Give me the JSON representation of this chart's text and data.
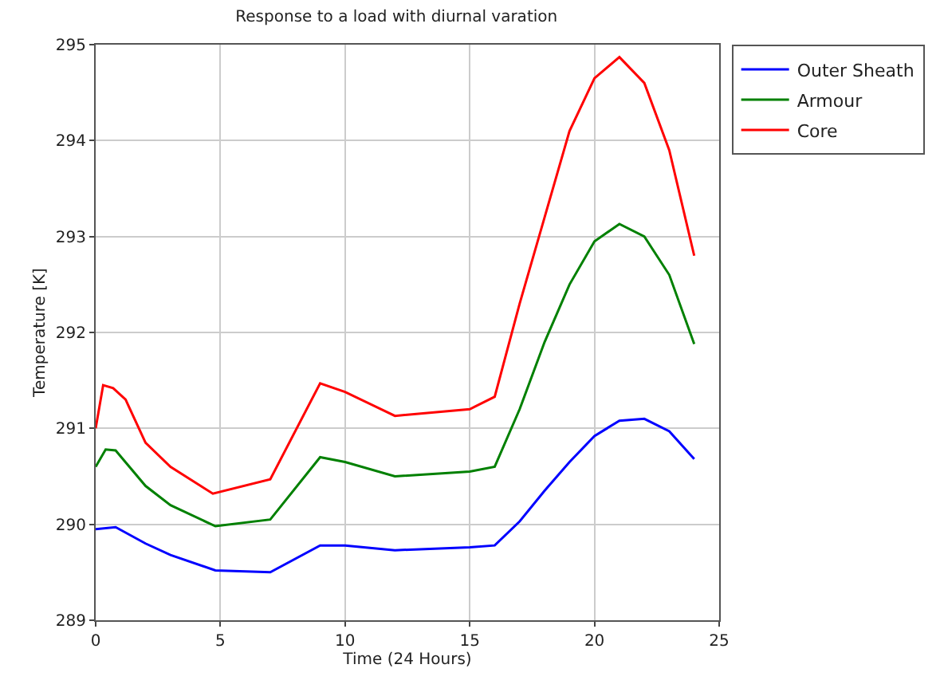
{
  "chart_data": {
    "type": "line",
    "title": "Response to a load with diurnal varation",
    "xlabel": "Time (24 Hours)",
    "ylabel": "Temperature [K]",
    "xlim": [
      0,
      25
    ],
    "xticks": [
      0,
      5,
      10,
      15,
      20,
      25
    ],
    "ylim": [
      289,
      295
    ],
    "yticks": [
      289,
      290,
      291,
      292,
      293,
      294,
      295
    ],
    "grid": true,
    "legend": "top right",
    "line_style": "solid",
    "marker": "none",
    "series": [
      {
        "name": "Outer Sheath",
        "color": "#0000ff",
        "x": [
          0,
          0.8,
          2,
          3,
          4.8,
          7,
          9,
          10,
          12,
          15,
          16,
          17,
          18,
          19,
          20,
          21,
          22,
          23,
          24
        ],
        "values": [
          289.95,
          289.97,
          289.8,
          289.68,
          289.52,
          289.5,
          289.78,
          289.78,
          289.73,
          289.76,
          289.78,
          290.03,
          290.35,
          290.65,
          290.92,
          291.08,
          291.1,
          290.97,
          290.68
        ]
      },
      {
        "name": "Armour",
        "color": "#008000",
        "x": [
          0,
          0.4,
          0.8,
          2,
          3,
          4.8,
          7,
          9,
          10,
          12,
          15,
          16,
          17,
          18,
          19,
          20,
          21,
          22,
          23,
          24
        ],
        "values": [
          290.6,
          290.78,
          290.77,
          290.4,
          290.2,
          289.98,
          290.05,
          290.7,
          290.65,
          290.5,
          290.55,
          290.6,
          291.2,
          291.9,
          292.5,
          292.95,
          293.13,
          293.0,
          292.6,
          291.88
        ]
      },
      {
        "name": "Core",
        "color": "#ff0000",
        "x": [
          0,
          0.3,
          0.7,
          1.2,
          2,
          3,
          4.7,
          7,
          9,
          10,
          12,
          15,
          16,
          17,
          18,
          19,
          20,
          21,
          22,
          23,
          24
        ],
        "values": [
          291.0,
          291.45,
          291.42,
          291.3,
          290.85,
          290.6,
          290.32,
          290.47,
          291.47,
          291.38,
          291.13,
          291.2,
          291.33,
          292.3,
          293.2,
          294.1,
          294.65,
          294.87,
          294.6,
          293.9,
          292.8
        ]
      }
    ]
  }
}
